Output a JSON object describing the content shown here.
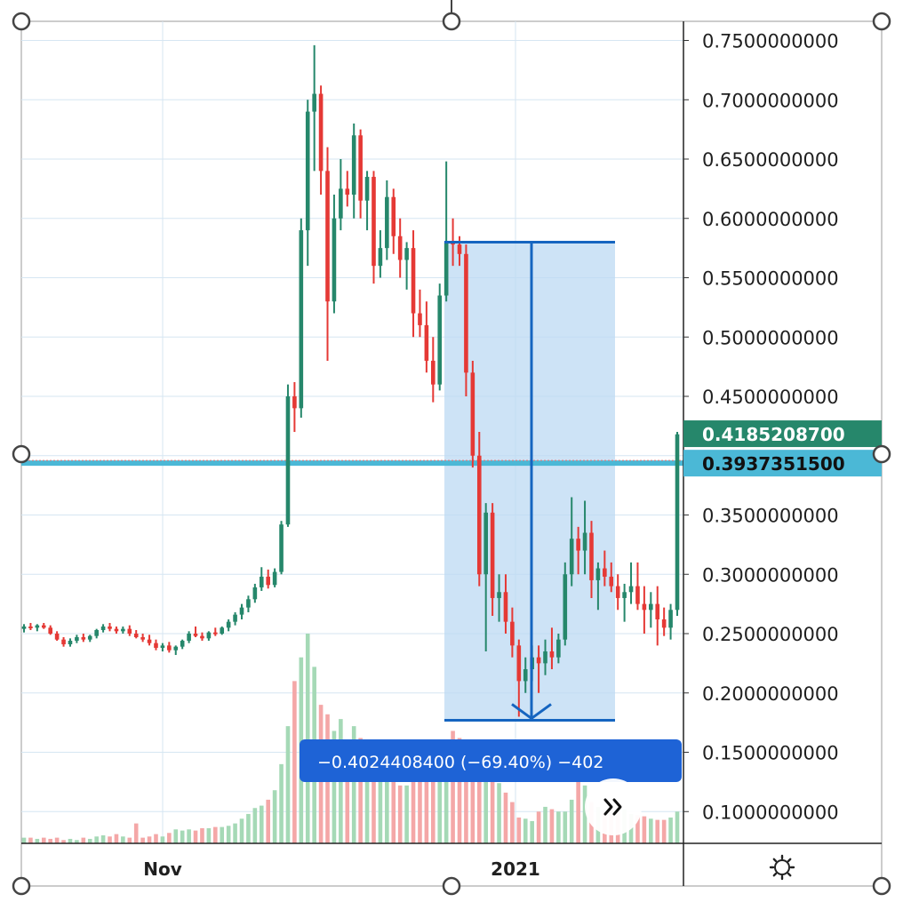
{
  "chart_data": {
    "type": "candlestick",
    "x_ticks": [
      "Nov",
      "2021"
    ],
    "y_ticks": [
      "0.7500000000",
      "0.7000000000",
      "0.6500000000",
      "0.6000000000",
      "0.5500000000",
      "0.5000000000",
      "0.4500000000",
      "0.3500000000",
      "0.3000000000",
      "0.2500000000",
      "0.2000000000",
      "0.1500000000",
      "0.1000000000"
    ],
    "y_tick_values": [
      0.75,
      0.7,
      0.65,
      0.6,
      0.55,
      0.5,
      0.45,
      0.35,
      0.3,
      0.25,
      0.2,
      0.15,
      0.1
    ],
    "ylim": [
      0.072,
      0.769
    ],
    "grid": true,
    "current_price": {
      "label": "0.4185208700",
      "value": 0.4185,
      "color": "#26876b"
    },
    "horizontal_line": {
      "label": "0.3937351500",
      "value": 0.3937,
      "color": "#4bb8d6"
    },
    "price_range_measure": {
      "start_price": 0.58,
      "end_price": 0.177,
      "label": "−0.4024408400 (−69.40%) −402",
      "color": "#1565c0"
    },
    "up_color": "#26876b",
    "down_color": "#e53935",
    "volume_up_color": "#a5d9b6",
    "volume_down_color": "#f4a7a7",
    "candles": [
      [
        0.254,
        0.258,
        0.251,
        0.256
      ],
      [
        0.256,
        0.259,
        0.253,
        0.255
      ],
      [
        0.255,
        0.258,
        0.252,
        0.257
      ],
      [
        0.257,
        0.259,
        0.254,
        0.255
      ],
      [
        0.255,
        0.257,
        0.249,
        0.25
      ],
      [
        0.25,
        0.252,
        0.244,
        0.245
      ],
      [
        0.245,
        0.247,
        0.239,
        0.241
      ],
      [
        0.241,
        0.246,
        0.239,
        0.244
      ],
      [
        0.244,
        0.249,
        0.242,
        0.247
      ],
      [
        0.247,
        0.25,
        0.243,
        0.245
      ],
      [
        0.245,
        0.249,
        0.243,
        0.248
      ],
      [
        0.248,
        0.254,
        0.246,
        0.253
      ],
      [
        0.253,
        0.258,
        0.251,
        0.256
      ],
      [
        0.256,
        0.259,
        0.252,
        0.254
      ],
      [
        0.254,
        0.256,
        0.25,
        0.252
      ],
      [
        0.252,
        0.256,
        0.25,
        0.254
      ],
      [
        0.254,
        0.257,
        0.248,
        0.25
      ],
      [
        0.25,
        0.253,
        0.246,
        0.247
      ],
      [
        0.247,
        0.25,
        0.243,
        0.245
      ],
      [
        0.245,
        0.249,
        0.24,
        0.242
      ],
      [
        0.242,
        0.245,
        0.236,
        0.238
      ],
      [
        0.238,
        0.242,
        0.235,
        0.24
      ],
      [
        0.24,
        0.243,
        0.234,
        0.236
      ],
      [
        0.236,
        0.24,
        0.232,
        0.239
      ],
      [
        0.239,
        0.245,
        0.237,
        0.244
      ],
      [
        0.244,
        0.252,
        0.242,
        0.25
      ],
      [
        0.25,
        0.256,
        0.247,
        0.248
      ],
      [
        0.248,
        0.251,
        0.244,
        0.246
      ],
      [
        0.246,
        0.252,
        0.244,
        0.251
      ],
      [
        0.251,
        0.255,
        0.248,
        0.25
      ],
      [
        0.25,
        0.256,
        0.249,
        0.255
      ],
      [
        0.255,
        0.262,
        0.252,
        0.26
      ],
      [
        0.26,
        0.268,
        0.257,
        0.266
      ],
      [
        0.266,
        0.275,
        0.262,
        0.272
      ],
      [
        0.272,
        0.282,
        0.268,
        0.279
      ],
      [
        0.279,
        0.292,
        0.276,
        0.289
      ],
      [
        0.289,
        0.306,
        0.286,
        0.298
      ],
      [
        0.298,
        0.304,
        0.288,
        0.291
      ],
      [
        0.291,
        0.305,
        0.289,
        0.302
      ],
      [
        0.302,
        0.345,
        0.3,
        0.342
      ],
      [
        0.342,
        0.46,
        0.34,
        0.45
      ],
      [
        0.45,
        0.462,
        0.42,
        0.44
      ],
      [
        0.44,
        0.6,
        0.432,
        0.59
      ],
      [
        0.59,
        0.7,
        0.56,
        0.69
      ],
      [
        0.69,
        0.746,
        0.64,
        0.705
      ],
      [
        0.705,
        0.712,
        0.62,
        0.64
      ],
      [
        0.64,
        0.66,
        0.48,
        0.53
      ],
      [
        0.53,
        0.62,
        0.52,
        0.6
      ],
      [
        0.6,
        0.65,
        0.59,
        0.625
      ],
      [
        0.625,
        0.64,
        0.61,
        0.62
      ],
      [
        0.62,
        0.68,
        0.6,
        0.67
      ],
      [
        0.67,
        0.675,
        0.6,
        0.615
      ],
      [
        0.615,
        0.64,
        0.59,
        0.635
      ],
      [
        0.635,
        0.64,
        0.545,
        0.56
      ],
      [
        0.56,
        0.59,
        0.55,
        0.575
      ],
      [
        0.575,
        0.632,
        0.565,
        0.618
      ],
      [
        0.618,
        0.625,
        0.57,
        0.585
      ],
      [
        0.585,
        0.6,
        0.55,
        0.565
      ],
      [
        0.565,
        0.58,
        0.54,
        0.575
      ],
      [
        0.575,
        0.59,
        0.5,
        0.52
      ],
      [
        0.52,
        0.54,
        0.5,
        0.51
      ],
      [
        0.51,
        0.53,
        0.47,
        0.48
      ],
      [
        0.48,
        0.5,
        0.445,
        0.46
      ],
      [
        0.46,
        0.545,
        0.455,
        0.535
      ],
      [
        0.535,
        0.648,
        0.53,
        0.58
      ],
      [
        0.58,
        0.6,
        0.56,
        0.578
      ],
      [
        0.578,
        0.585,
        0.56,
        0.57
      ],
      [
        0.57,
        0.578,
        0.45,
        0.47
      ],
      [
        0.47,
        0.48,
        0.39,
        0.4
      ],
      [
        0.4,
        0.42,
        0.29,
        0.3
      ],
      [
        0.3,
        0.36,
        0.235,
        0.352
      ],
      [
        0.352,
        0.36,
        0.265,
        0.28
      ],
      [
        0.28,
        0.3,
        0.26,
        0.285
      ],
      [
        0.285,
        0.3,
        0.25,
        0.26
      ],
      [
        0.26,
        0.272,
        0.23,
        0.24
      ],
      [
        0.24,
        0.245,
        0.18,
        0.21
      ],
      [
        0.21,
        0.23,
        0.2,
        0.22
      ],
      [
        0.22,
        0.24,
        0.21,
        0.23
      ],
      [
        0.23,
        0.24,
        0.2,
        0.225
      ],
      [
        0.225,
        0.245,
        0.215,
        0.235
      ],
      [
        0.235,
        0.255,
        0.22,
        0.23
      ],
      [
        0.23,
        0.25,
        0.225,
        0.245
      ],
      [
        0.245,
        0.31,
        0.24,
        0.3
      ],
      [
        0.3,
        0.365,
        0.29,
        0.33
      ],
      [
        0.33,
        0.34,
        0.3,
        0.32
      ],
      [
        0.32,
        0.362,
        0.3,
        0.335
      ],
      [
        0.335,
        0.345,
        0.28,
        0.295
      ],
      [
        0.295,
        0.31,
        0.27,
        0.305
      ],
      [
        0.305,
        0.32,
        0.29,
        0.298
      ],
      [
        0.298,
        0.31,
        0.285,
        0.29
      ],
      [
        0.29,
        0.3,
        0.27,
        0.28
      ],
      [
        0.28,
        0.292,
        0.26,
        0.285
      ],
      [
        0.285,
        0.31,
        0.275,
        0.29
      ],
      [
        0.29,
        0.31,
        0.27,
        0.275
      ],
      [
        0.275,
        0.29,
        0.25,
        0.27
      ],
      [
        0.27,
        0.285,
        0.255,
        0.275
      ],
      [
        0.275,
        0.29,
        0.24,
        0.262
      ],
      [
        0.262,
        0.272,
        0.248,
        0.255
      ],
      [
        0.255,
        0.275,
        0.245,
        0.27
      ],
      [
        0.27,
        0.42,
        0.265,
        0.418
      ]
    ],
    "volumes": [
      0.078,
      0.078,
      0.077,
      0.078,
      0.077,
      0.078,
      0.076,
      0.077,
      0.076,
      0.078,
      0.077,
      0.079,
      0.08,
      0.079,
      0.081,
      0.079,
      0.078,
      0.09,
      0.078,
      0.079,
      0.081,
      0.079,
      0.082,
      0.085,
      0.084,
      0.085,
      0.084,
      0.086,
      0.086,
      0.087,
      0.087,
      0.088,
      0.09,
      0.094,
      0.098,
      0.103,
      0.105,
      0.11,
      0.118,
      0.14,
      0.172,
      0.21,
      0.23,
      0.25,
      0.222,
      0.19,
      0.182,
      0.168,
      0.178,
      0.16,
      0.172,
      0.162,
      0.158,
      0.148,
      0.14,
      0.15,
      0.13,
      0.122,
      0.122,
      0.125,
      0.148,
      0.14,
      0.128,
      0.13,
      0.158,
      0.168,
      0.162,
      0.16,
      0.15,
      0.15,
      0.15,
      0.138,
      0.124,
      0.116,
      0.108,
      0.095,
      0.094,
      0.092,
      0.1,
      0.104,
      0.102,
      0.1,
      0.1,
      0.11,
      0.142,
      0.122,
      0.108,
      0.104,
      0.1,
      0.102,
      0.1,
      0.102,
      0.098,
      0.097,
      0.096,
      0.094,
      0.093,
      0.093,
      0.095,
      0.1
    ]
  },
  "settings_icon": "gear-icon",
  "scroll_button_icon": "double-chevron-right-icon"
}
